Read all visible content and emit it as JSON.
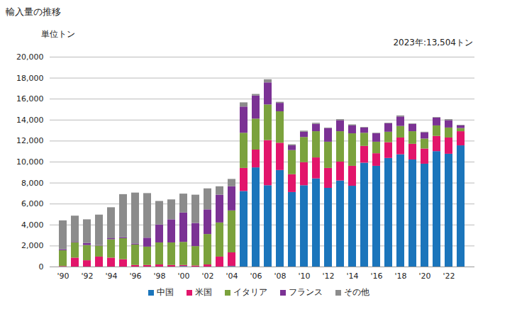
{
  "chart_data": {
    "type": "bar",
    "stacked": true,
    "title": "輸入量の推移",
    "y_label": "単位トン",
    "annotation": "2023年:13,504トン",
    "categories": [
      "'90",
      null,
      "'92",
      null,
      "'94",
      null,
      "'96",
      null,
      "'98",
      null,
      "'00",
      null,
      "'02",
      null,
      "'04",
      null,
      "'06",
      null,
      "'08",
      null,
      "'10",
      null,
      "'12",
      null,
      "'14",
      null,
      "'16",
      null,
      "'18",
      null,
      "'20",
      null,
      "'22",
      null
    ],
    "series": [
      {
        "name": "中国",
        "color": "#1b75bb",
        "values": [
          0,
          0,
          0,
          0,
          0,
          0,
          0,
          0,
          0,
          0,
          50,
          0,
          0,
          0,
          50,
          7200,
          9450,
          7750,
          9200,
          7100,
          7750,
          8400,
          7500,
          8200,
          7700,
          9900,
          9600,
          10350,
          10700,
          10200,
          9800,
          11000,
          10750,
          11550
        ]
      },
      {
        "name": "米国",
        "color": "#e2156b",
        "values": [
          50,
          850,
          600,
          950,
          850,
          700,
          150,
          150,
          200,
          150,
          100,
          100,
          200,
          950,
          1300,
          2200,
          1700,
          4300,
          2600,
          1700,
          2200,
          2000,
          1900,
          1800,
          1900,
          1600,
          1200,
          1500,
          1600,
          1500,
          1450,
          1450,
          1550,
          1350
        ]
      },
      {
        "name": "イタリア",
        "color": "#7ba23d",
        "values": [
          1500,
          1450,
          1450,
          1050,
          1750,
          2000,
          1950,
          1750,
          2100,
          2150,
          2200,
          1850,
          2900,
          3250,
          4000,
          3350,
          2950,
          3400,
          3000,
          2300,
          2400,
          2500,
          2500,
          2900,
          3100,
          1250,
          1100,
          1000,
          1100,
          1200,
          950,
          1000,
          950,
          300
        ]
      },
      {
        "name": "フランス",
        "color": "#7b3294",
        "values": [
          100,
          50,
          200,
          50,
          100,
          100,
          100,
          850,
          1700,
          2200,
          2800,
          2200,
          2350,
          2650,
          2300,
          2500,
          2200,
          2100,
          800,
          450,
          500,
          700,
          1300,
          1050,
          750,
          500,
          800,
          800,
          900,
          700,
          600,
          750,
          700,
          250
        ]
      },
      {
        "name": "その他",
        "color": "#8c8c8c",
        "values": [
          2750,
          2500,
          2250,
          2900,
          2950,
          4100,
          4850,
          4250,
          2250,
          1900,
          1800,
          2700,
          2000,
          800,
          700,
          400,
          150,
          300,
          100,
          100,
          100,
          100,
          50,
          100,
          100,
          50,
          50,
          50,
          100,
          50,
          50,
          50,
          100,
          54
        ]
      }
    ],
    "ylim": [
      0,
      20000
    ],
    "yticks": [
      0,
      {
        "value": 2000,
        "label": "2,000"
      },
      {
        "value": 4000,
        "label": "4,000"
      },
      {
        "value": 6000,
        "label": "6,000"
      },
      {
        "value": 8000,
        "label": "8,000"
      },
      {
        "value": 10000,
        "label": "10,000"
      },
      {
        "value": 12000,
        "label": "12,000"
      },
      {
        "value": 14000,
        "label": "14,000"
      },
      {
        "value": 16000,
        "label": "16,000"
      },
      {
        "value": 18000,
        "label": "18,000"
      },
      {
        "value": 20000,
        "label": "20,000"
      }
    ],
    "grid": true,
    "legend": "bottom"
  }
}
